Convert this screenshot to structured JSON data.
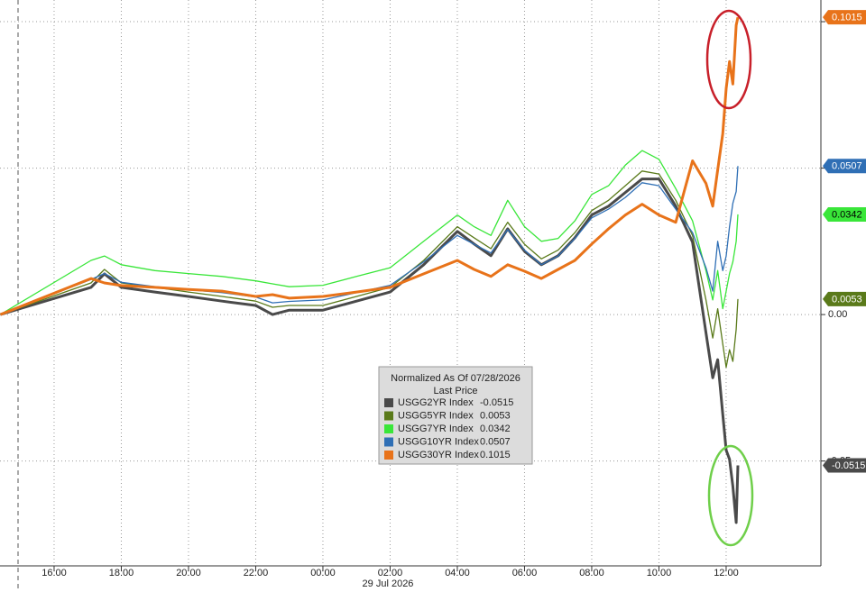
{
  "chart_data": {
    "type": "line",
    "x_label": "29 Jul 2026",
    "legend_title": "Normalized As Of 07/28/2026",
    "legend_subtitle": "Last Price",
    "x": [
      14.4,
      17.1,
      17.5,
      18,
      19,
      20,
      21,
      22,
      22.5,
      23,
      24,
      25,
      26,
      27,
      28,
      28.5,
      29,
      29.5,
      30,
      30.5,
      31,
      31.5,
      32,
      32.5,
      33,
      33.5,
      34,
      34.5,
      35,
      35.4,
      35.6,
      35.75,
      35.9,
      36.0,
      36.1,
      36.2,
      36.3,
      36.35
    ],
    "xlim": [
      14.39,
      38.82
    ],
    "xticks": [
      {
        "value": 16,
        "label": "16:00"
      },
      {
        "value": 18,
        "label": "18:00"
      },
      {
        "value": 20,
        "label": "20:00"
      },
      {
        "value": 22,
        "label": "22:00"
      },
      {
        "value": 24,
        "label": "00:00"
      },
      {
        "value": 26,
        "label": "02:00"
      },
      {
        "value": 28,
        "label": "04:00"
      },
      {
        "value": 30,
        "label": "06:00"
      },
      {
        "value": 32,
        "label": "08:00"
      },
      {
        "value": 34,
        "label": "10:00"
      },
      {
        "value": 36,
        "label": "12:00"
      }
    ],
    "ylim": [
      -0.0858,
      0.1074
    ],
    "yticks": [
      {
        "value": -0.05,
        "label": "-0.05"
      },
      {
        "value": 0,
        "label": "0.00"
      },
      {
        "value": 0.05,
        "label": "0.05"
      },
      {
        "value": 0.1,
        "label": "0.10"
      }
    ],
    "grid": true,
    "series": [
      {
        "name": "USGG2YR Index",
        "color": "#4a4a4a",
        "width": 3,
        "values": [
          0,
          0.0093,
          0.0139,
          0.0093,
          0.0077,
          0.0062,
          0.0046,
          0.0031,
          0,
          0.0015,
          0.0015,
          0.0046,
          0.0077,
          0.017,
          0.0284,
          0.0241,
          0.0201,
          0.0293,
          0.0216,
          0.017,
          0.0201,
          0.0262,
          0.034,
          0.037,
          0.0417,
          0.0463,
          0.0463,
          0.037,
          0.0247,
          -0.0062,
          -0.0216,
          -0.0154,
          -0.034,
          -0.0463,
          -0.0494,
          -0.0586,
          -0.071,
          -0.0515
        ]
      },
      {
        "name": "USGG5YR Index",
        "color": "#5a7a1a",
        "width": 1.3,
        "values": [
          0,
          0.0108,
          0.0154,
          0.0108,
          0.0093,
          0.0077,
          0.0062,
          0.0046,
          0.0025,
          0.0031,
          0.0031,
          0.0062,
          0.0093,
          0.0185,
          0.03,
          0.0262,
          0.0225,
          0.0315,
          0.024,
          0.019,
          0.022,
          0.028,
          0.0355,
          0.039,
          0.044,
          0.049,
          0.048,
          0.039,
          0.027,
          0.005,
          -0.008,
          0.002,
          -0.01,
          -0.018,
          -0.012,
          -0.016,
          -0.005,
          0.0053
        ]
      },
      {
        "name": "USGG7YR Index",
        "color": "#39e639",
        "width": 1.3,
        "values": [
          0,
          0.0185,
          0.02,
          0.017,
          0.015,
          0.014,
          0.013,
          0.0115,
          0.0105,
          0.0095,
          0.01,
          0.013,
          0.016,
          0.025,
          0.034,
          0.03,
          0.027,
          0.039,
          0.03,
          0.025,
          0.026,
          0.032,
          0.041,
          0.044,
          0.051,
          0.056,
          0.053,
          0.043,
          0.032,
          0.015,
          0.005,
          0.015,
          0.002,
          0.008,
          0.014,
          0.018,
          0.025,
          0.0342
        ]
      },
      {
        "name": "USGG10YR Index",
        "color": "#2f6fb5",
        "width": 1.3,
        "values": [
          0,
          0.012,
          0.014,
          0.011,
          0.0095,
          0.0085,
          0.0075,
          0.006,
          0.004,
          0.0045,
          0.005,
          0.0075,
          0.01,
          0.018,
          0.027,
          0.024,
          0.021,
          0.029,
          0.022,
          0.017,
          0.02,
          0.026,
          0.033,
          0.036,
          0.04,
          0.045,
          0.044,
          0.036,
          0.028,
          0.016,
          0.008,
          0.025,
          0.015,
          0.02,
          0.03,
          0.038,
          0.042,
          0.0507
        ]
      },
      {
        "name": "USGG30YR Index",
        "color": "#e8731a",
        "width": 3,
        "values": [
          0,
          0.0123,
          0.0108,
          0.0099,
          0.0093,
          0.0086,
          0.008,
          0.0062,
          0.0068,
          0.0056,
          0.0062,
          0.0077,
          0.0093,
          0.0139,
          0.0185,
          0.0154,
          0.013,
          0.017,
          0.0148,
          0.0123,
          0.0154,
          0.0185,
          0.0241,
          0.0293,
          0.034,
          0.0377,
          0.034,
          0.0315,
          0.0525,
          0.0448,
          0.037,
          0.0494,
          0.0617,
          0.0772,
          0.0864,
          0.0787,
          0.0988,
          0.1015
        ]
      }
    ]
  }
}
